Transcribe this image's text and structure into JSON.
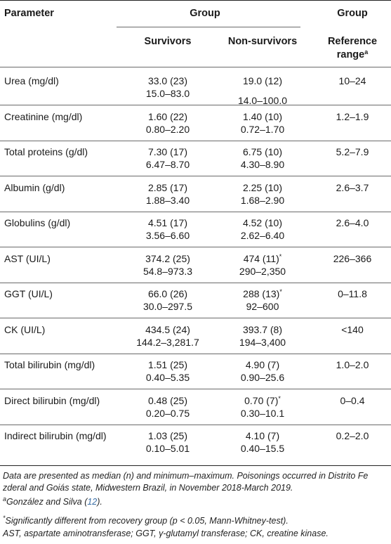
{
  "header": {
    "parameter": "Parameter",
    "group_main": "Group",
    "group_ref": "Group",
    "survivors": "Survivors",
    "non_survivors": "Non-survivors",
    "reference_line1": "Reference",
    "reference_line2": "range",
    "reference_sup": "a"
  },
  "rows": [
    {
      "param": "Urea (mg/dl)",
      "surv_med": "33.0 (23)",
      "surv_range": "15.0–83.0",
      "non_med": "19.0 (12)",
      "non_sup": "",
      "non_range": "14.0–100.0",
      "ref": "10–24"
    },
    {
      "param": "Creatinine (mg/dl)",
      "surv_med": "1.60 (22)",
      "surv_range": "0.80–2.20",
      "non_med": "1.40 (10)",
      "non_sup": "",
      "non_range": "0.72–1.70",
      "ref": "1.2–1.9"
    },
    {
      "param": "Total proteins (g/dl)",
      "surv_med": "7.30 (17)",
      "surv_range": "6.47–8.70",
      "non_med": "6.75 (10)",
      "non_sup": "",
      "non_range": "4.30–8.90",
      "ref": "5.2–7.9"
    },
    {
      "param": "Albumin (g/dl)",
      "surv_med": "2.85 (17)",
      "surv_range": "1.88–3.40",
      "non_med": "2.25 (10)",
      "non_sup": "",
      "non_range": "1.68–2.90",
      "ref": "2.6–3.7"
    },
    {
      "param": "Globulins (g/dl)",
      "surv_med": "4.51 (17)",
      "surv_range": "3.56–6.60",
      "non_med": "4.52 (10)",
      "non_sup": "",
      "non_range": "2.62–6.40",
      "ref": "2.6–4.0"
    },
    {
      "param": "AST (UI/L)",
      "surv_med": "374.2 (25)",
      "surv_range": "54.8–973.3",
      "non_med": "474 (11)",
      "non_sup": "*",
      "non_range": "290–2,350",
      "ref": "226–366"
    },
    {
      "param": "GGT (UI/L)",
      "surv_med": "66.0 (26)",
      "surv_range": "30.0–297.5",
      "non_med": "288 (13)",
      "non_sup": "*",
      "non_range": "92–600",
      "ref": "0–11.8"
    },
    {
      "param": "CK (UI/L)",
      "surv_med": "434.5 (24)",
      "surv_range": "144.2–3,281.7",
      "non_med": "393.7 (8)",
      "non_sup": "",
      "non_range": "194–3,400",
      "ref": "<140"
    },
    {
      "param": "Total bilirubin (mg/dl)",
      "surv_med": "1.51 (25)",
      "surv_range": "0.40–5.35",
      "non_med": "4.90 (7)",
      "non_sup": "",
      "non_range": "0.90–25.6",
      "ref": "1.0–2.0"
    },
    {
      "param": "Direct bilirubin (mg/dl)",
      "surv_med": "0.48 (25)",
      "surv_range": "0.20–0.75",
      "non_med": "0.70 (7)",
      "non_sup": "*",
      "non_range": "0.30–10.1",
      "ref": "0–0.4"
    },
    {
      "param": "Indirect bilirubin (mg/dl)",
      "surv_med": "1.03 (25)",
      "surv_range": "0.10–5.01",
      "non_med": "4.10 (7)",
      "non_sup": "",
      "non_range": "0.40–15.5",
      "ref": "0.2–2.0"
    }
  ],
  "footnotes": {
    "main": "Data are presented as median (n) and minimum–maximum. Poisonings occurred in Distrito Fe zderal and Goiás state, Midwestern Brazil, in November 2018-March 2019.",
    "a_sup": "a",
    "a_text": "González and Silva (",
    "a_ref": "12",
    "a_close": ").",
    "star_sup": "*",
    "star_text": "Significantly different from recovery group (p < 0.05, Mann-Whitney-test).",
    "abbrev": "AST, aspartate aminotransferase; GGT, γ-glutamyl transferase; CK, creatine kinase."
  }
}
